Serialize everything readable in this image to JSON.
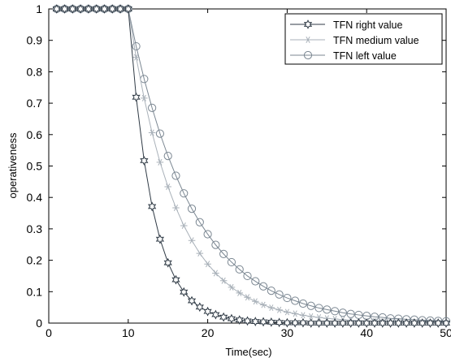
{
  "chart_data": {
    "type": "line",
    "xlabel": "Time(sec)",
    "ylabel": "operativeness",
    "xlim": [
      0,
      50
    ],
    "ylim": [
      0,
      1
    ],
    "xticks": [
      "0",
      "10",
      "20",
      "30",
      "40",
      "50"
    ],
    "yticks": [
      "0",
      "0.1",
      "0.2",
      "0.3",
      "0.4",
      "0.5",
      "0.6",
      "0.7",
      "0.8",
      "0.9",
      "1"
    ],
    "grid": false,
    "legend_position": "top-right",
    "series": [
      {
        "name": "TFN right value",
        "marker": "hexagram",
        "color": "#2f3a45",
        "x": [
          1,
          2,
          3,
          4,
          5,
          6,
          7,
          8,
          9,
          10,
          11,
          12,
          13,
          14,
          15,
          16,
          17,
          18,
          19,
          20,
          21,
          22,
          23,
          24,
          25,
          26,
          27,
          28,
          29,
          30,
          31,
          32,
          33,
          34,
          35,
          36,
          37,
          38,
          39,
          40,
          41,
          42,
          43,
          44,
          45,
          46,
          47,
          48,
          49,
          50
        ],
        "values": [
          1,
          1,
          1,
          1,
          1,
          1,
          1,
          1,
          1,
          1,
          0.719,
          0.517,
          0.371,
          0.267,
          0.192,
          0.138,
          0.099,
          0.071,
          0.051,
          0.037,
          0.027,
          0.019,
          0.014,
          0.01,
          0.007,
          0.005,
          0.004,
          0.003,
          0.002,
          0.001,
          0.001,
          0.001,
          0,
          0,
          0,
          0,
          0,
          0,
          0,
          0,
          0,
          0,
          0,
          0,
          0,
          0,
          0,
          0,
          0,
          0
        ]
      },
      {
        "name": "TFN medium value",
        "marker": "asterisk",
        "color": "#a9b1b9",
        "x": [
          1,
          2,
          3,
          4,
          5,
          6,
          7,
          8,
          9,
          10,
          11,
          12,
          13,
          14,
          15,
          16,
          17,
          18,
          19,
          20,
          21,
          22,
          23,
          24,
          25,
          26,
          27,
          28,
          29,
          30,
          31,
          32,
          33,
          34,
          35,
          36,
          37,
          38,
          39,
          40,
          41,
          42,
          43,
          44,
          45,
          46,
          47,
          48,
          49,
          50
        ],
        "values": [
          1,
          1,
          1,
          1,
          1,
          1,
          1,
          1,
          1,
          1,
          0.846,
          0.716,
          0.606,
          0.512,
          0.434,
          0.367,
          0.31,
          0.263,
          0.222,
          0.188,
          0.159,
          0.135,
          0.114,
          0.096,
          0.082,
          0.069,
          0.058,
          0.049,
          0.042,
          0.035,
          0.03,
          0.025,
          0.021,
          0.018,
          0.015,
          0.013,
          0.011,
          0.009,
          0.008,
          0.007,
          0.006,
          0.005,
          0.004,
          0.003,
          0.003,
          0.002,
          0.002,
          0.002,
          0.001,
          0.001
        ]
      },
      {
        "name": "TFN left value",
        "marker": "circle",
        "color": "#7b8792",
        "x": [
          1,
          2,
          3,
          4,
          5,
          6,
          7,
          8,
          9,
          10,
          11,
          12,
          13,
          14,
          15,
          16,
          17,
          18,
          19,
          20,
          21,
          22,
          23,
          24,
          25,
          26,
          27,
          28,
          29,
          30,
          31,
          32,
          33,
          34,
          35,
          36,
          37,
          38,
          39,
          40,
          41,
          42,
          43,
          44,
          45,
          46,
          47,
          48,
          49,
          50
        ],
        "values": [
          1,
          1,
          1,
          1,
          1,
          1,
          1,
          1,
          1,
          1,
          0.881,
          0.777,
          0.685,
          0.603,
          0.532,
          0.469,
          0.413,
          0.364,
          0.321,
          0.283,
          0.249,
          0.22,
          0.194,
          0.171,
          0.15,
          0.133,
          0.117,
          0.103,
          0.091,
          0.08,
          0.071,
          0.062,
          0.055,
          0.048,
          0.043,
          0.038,
          0.033,
          0.029,
          0.026,
          0.023,
          0.02,
          0.018,
          0.015,
          0.014,
          0.012,
          0.011,
          0.009,
          0.008,
          0.007,
          0.006
        ]
      }
    ]
  }
}
